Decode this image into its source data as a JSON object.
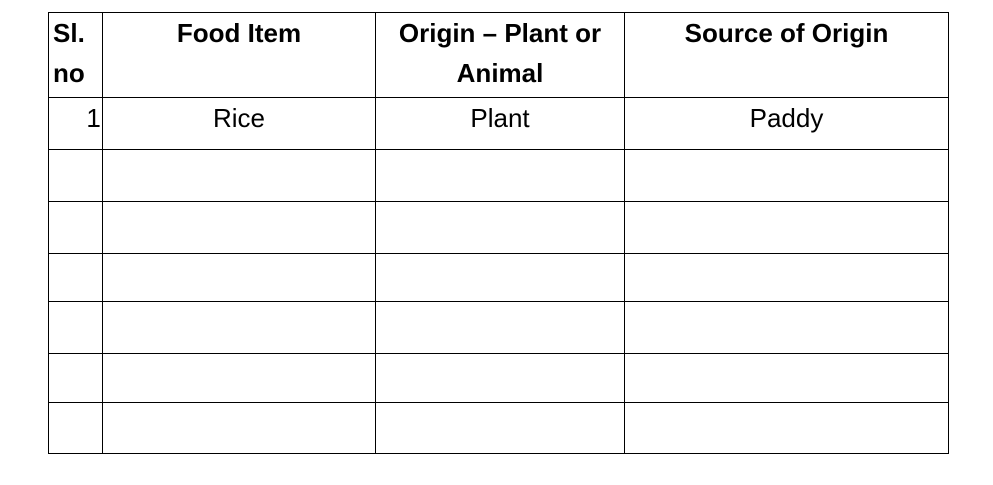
{
  "table": {
    "headers": [
      "Sl. no",
      "Food Item",
      "Origin – Plant or Animal",
      "Source of Origin"
    ],
    "header_lines": {
      "sl": [
        "Sl.",
        "no"
      ],
      "origin": [
        "Origin – Plant or",
        "Animal"
      ]
    },
    "rows": [
      [
        "1.",
        "Rice",
        "Plant",
        "Paddy"
      ],
      [
        "",
        "",
        "",
        ""
      ],
      [
        "",
        "",
        "",
        ""
      ],
      [
        "",
        "",
        "",
        ""
      ],
      [
        "",
        "",
        "",
        ""
      ],
      [
        "",
        "",
        "",
        ""
      ],
      [
        "",
        "",
        "",
        ""
      ]
    ]
  }
}
